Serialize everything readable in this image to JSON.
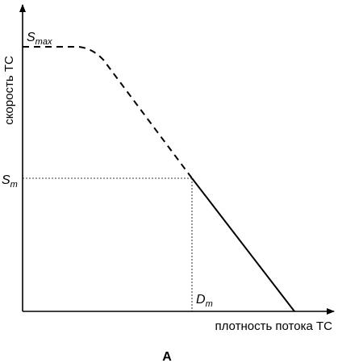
{
  "axes": {
    "y_label": "скорость ТС",
    "x_label": "плотность потока ТС"
  },
  "labels": {
    "s_max_base": "S",
    "s_max_sub": "max",
    "s_m_base": "S",
    "s_m_sub": "m",
    "d_m_base": "D",
    "d_m_sub": "m"
  },
  "caption": "A",
  "colors": {
    "ink": "#000000"
  }
}
